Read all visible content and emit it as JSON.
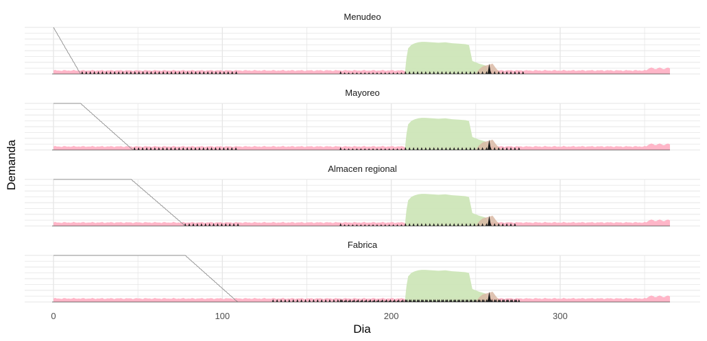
{
  "chart_data": {
    "type": "area",
    "xlabel": "Dia",
    "ylabel": "Demanda",
    "xlim": [
      0,
      365
    ],
    "x_ticks": [
      "0",
      "100",
      "200",
      "300"
    ],
    "x_tick_values": [
      0,
      100,
      200,
      300
    ],
    "y_range_shared": [
      0,
      1
    ],
    "y_tick_labels_shown": false,
    "grid": true,
    "legend": "none",
    "colors": {
      "base_demand": "#ffb6c8",
      "seasonal_demand": "#cde6b8",
      "season_tail": "#d9b8a4",
      "spikes": "#1a1a1a",
      "depletion_line": "#8c8c8c",
      "grid": "#e6e6e6"
    },
    "panels": [
      {
        "name": "Menudeo",
        "depletion_line": [
          [
            0,
            1.0
          ],
          [
            16,
            0.0
          ]
        ],
        "spike_range": [
          17,
          110
        ],
        "spike_range_late": [
          170,
          278
        ],
        "spike_start_level": 0.0
      },
      {
        "name": "Mayoreo",
        "depletion_line": [
          [
            0,
            1.0
          ],
          [
            16,
            1.0
          ],
          [
            47,
            0.0
          ]
        ],
        "spike_range": [
          48,
          110
        ],
        "spike_range_late": [
          170,
          277
        ],
        "spike_start_level": 0.0
      },
      {
        "name": "Almacen regional",
        "depletion_line": [
          [
            0,
            1.0
          ],
          [
            46,
            1.0
          ],
          [
            78,
            0.0
          ]
        ],
        "spike_range": [
          78,
          110
        ],
        "spike_range_late": [
          170,
          275
        ],
        "spike_start_level": 0.0
      },
      {
        "name": "Fabrica",
        "depletion_line": [
          [
            0,
            1.0
          ],
          [
            78,
            1.0
          ],
          [
            109,
            0.0
          ]
        ],
        "spike_range": [
          130,
          276
        ],
        "spike_range_late": [
          170,
          276
        ],
        "spike_start_level": 0.0
      }
    ],
    "seasonal_area": [
      [
        208,
        0.0
      ],
      [
        209,
        0.35
      ],
      [
        210,
        0.55
      ],
      [
        212,
        0.63
      ],
      [
        214,
        0.66
      ],
      [
        216,
        0.68
      ],
      [
        218,
        0.69
      ],
      [
        220,
        0.69
      ],
      [
        224,
        0.68
      ],
      [
        228,
        0.67
      ],
      [
        232,
        0.68
      ],
      [
        236,
        0.66
      ],
      [
        240,
        0.65
      ],
      [
        244,
        0.64
      ],
      [
        246,
        0.62
      ],
      [
        247,
        0.45
      ],
      [
        248,
        0.28
      ],
      [
        250,
        0.25
      ],
      [
        252,
        0.22
      ],
      [
        254,
        0.2
      ],
      [
        256,
        0.18
      ],
      [
        258,
        0.0
      ]
    ],
    "seasonal_tail": [
      [
        250,
        0.0
      ],
      [
        252,
        0.1
      ],
      [
        254,
        0.16
      ],
      [
        256,
        0.18
      ],
      [
        258,
        0.2
      ],
      [
        260,
        0.22
      ],
      [
        262,
        0.12
      ],
      [
        264,
        0.04
      ],
      [
        266,
        0.0
      ]
    ],
    "big_spike": {
      "x": 258,
      "height": 0.22
    },
    "base_demand": {
      "level": 0.06,
      "wiggle": 0.03,
      "late_bump_start": 352,
      "late_bump_level": 0.12
    },
    "spike_height": 0.06,
    "spike_spacing": 2.4
  }
}
